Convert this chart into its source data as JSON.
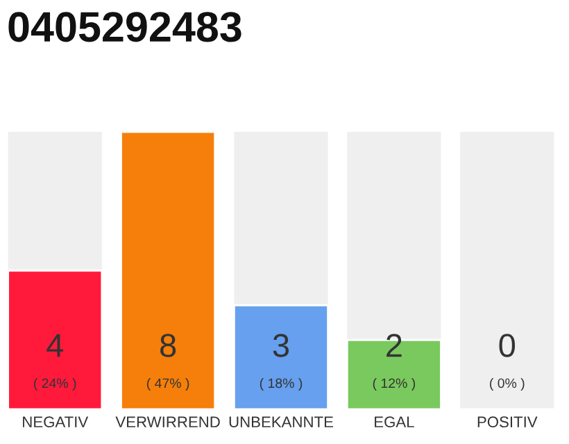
{
  "chart_data": {
    "type": "bar",
    "title": "0405292483",
    "categories": [
      "NEGATIV",
      "VERWIRREND",
      "UNBEKANNTE",
      "EGAL",
      "POSITIV"
    ],
    "values": [
      4,
      8,
      3,
      2,
      0
    ],
    "colors": [
      "#ff1a3c",
      "#f57f0a",
      "#66a0ee",
      "#7ac95e",
      null
    ],
    "data_labels": true,
    "annotations": [
      "( 24% )",
      "( 47% )",
      "( 18% )",
      "( 12% )",
      "( 0% )"
    ],
    "tick_labels": "x",
    "legend": false
  }
}
